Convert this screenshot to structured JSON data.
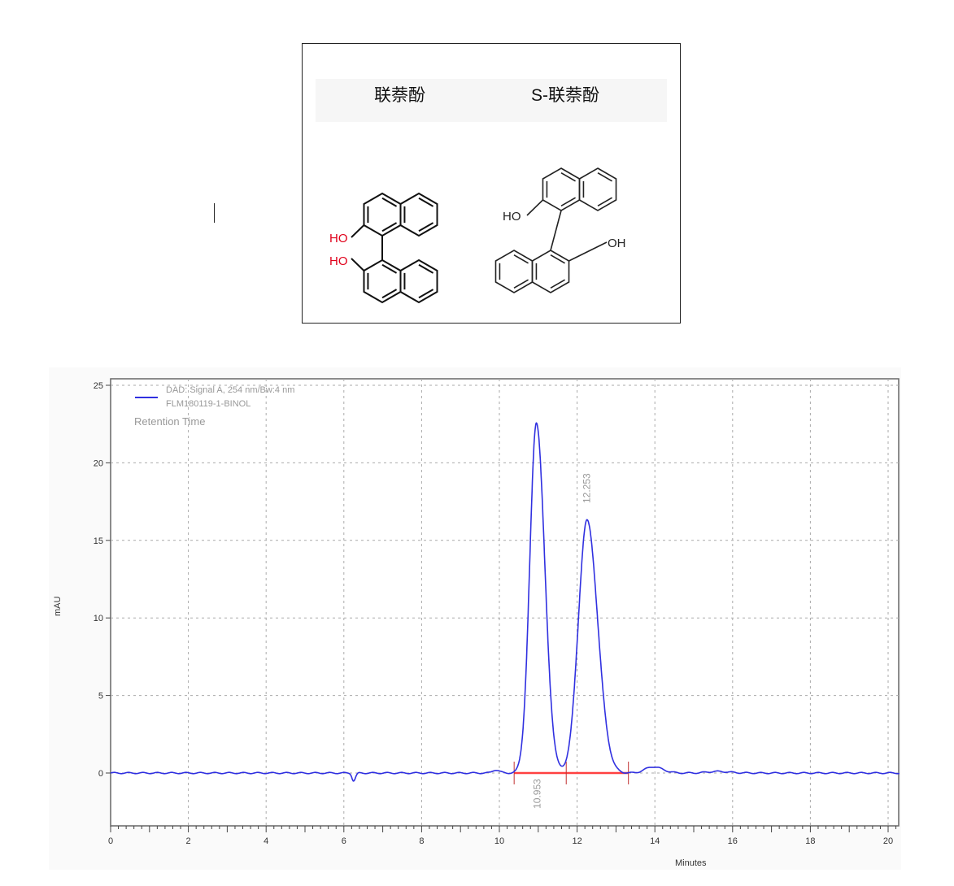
{
  "figure": {
    "headers": [
      "联萘酚",
      "S-联萘酚"
    ],
    "left_labels": [
      "HO",
      "HO"
    ],
    "right_labels": [
      "HO",
      "OH"
    ],
    "label_color": "#e0001a"
  },
  "chart_data": {
    "type": "line",
    "title": "",
    "legend": [
      "DAD: Signal A, 254 nm/Bw:4 nm",
      "FLM180119-1-BINOL",
      "Retention Time"
    ],
    "legend_placement": "top-left",
    "xlabel": "Minutes",
    "ylabel": "mAU",
    "xlim": [
      0,
      20.3
    ],
    "ylim": [
      -3.4,
      25.5
    ],
    "xticks": [
      0,
      2,
      4,
      6,
      8,
      10,
      12,
      14,
      16,
      18,
      20
    ],
    "yticks": [
      0,
      5,
      10,
      15,
      20,
      25
    ],
    "grid": true,
    "series_color": "#3030e0",
    "baseline_color": "#ff4040",
    "peaks": [
      {
        "retention_time": "10.953",
        "x": 10.953,
        "height": 22.6,
        "width": 0.17
      },
      {
        "retention_time": "12.253",
        "x": 12.253,
        "height": 16.3,
        "width": 0.22
      }
    ],
    "minor_features": [
      {
        "x": 6.25,
        "height": -0.5,
        "width": 0.04
      },
      {
        "x": 9.9,
        "height": 0.2,
        "width": 0.08
      },
      {
        "x": 13.95,
        "height": 0.4,
        "width": 0.2
      },
      {
        "x": 15.6,
        "height": 0.1,
        "width": 0.25
      }
    ],
    "integration_baseline": {
      "start": 10.38,
      "valley": 11.72,
      "end": 13.32
    }
  }
}
